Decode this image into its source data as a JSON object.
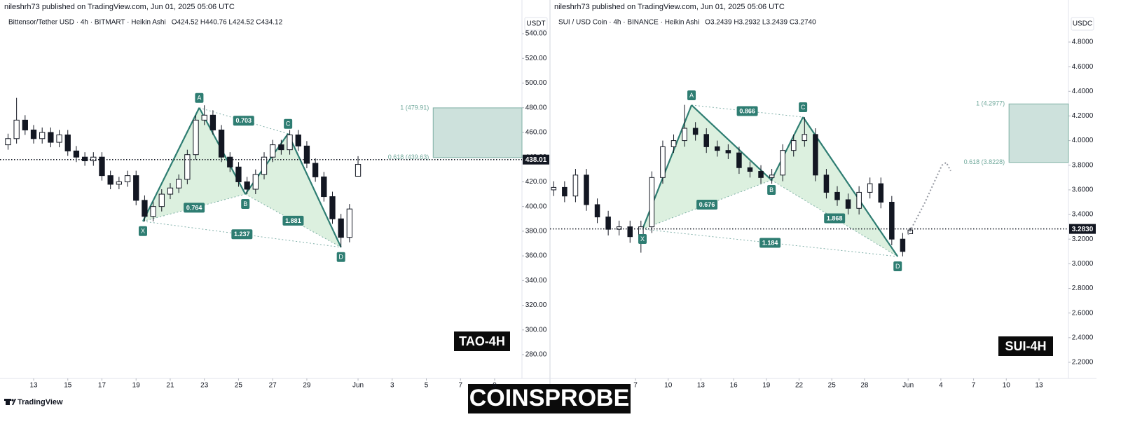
{
  "chart_data": [
    {
      "type": "candlestick",
      "header": "nileshrh73 published on TradingView.com, Jun 01, 2025 05:06 UTC",
      "symbol": "Bittensor/Tether USD · 4h · BITMART · Heikin Ashi",
      "ohlc": "O424.52 H440.76 L424.52 C434.12",
      "currency": "USDT",
      "tag": "TAO-4H",
      "up_color": "#ffffff",
      "down_color": "#131722",
      "x": [
        11.5,
        12,
        12.5,
        13,
        13.5,
        14,
        14.5,
        15,
        15.5,
        16,
        16.5,
        17,
        17.5,
        18,
        18.5,
        19,
        19.5,
        20,
        20.5,
        21,
        21.5,
        22,
        22.5,
        23,
        23.5,
        24,
        24.5,
        25,
        25.5,
        26,
        26.5,
        27,
        27.5,
        28,
        28.5,
        29,
        29.5,
        30,
        30.5,
        31,
        31.5,
        32
      ],
      "open": [
        450,
        455,
        470,
        462,
        455,
        460,
        452,
        458,
        445,
        440,
        437,
        440,
        425,
        418,
        420,
        425,
        405,
        392,
        400,
        410,
        415,
        422,
        442,
        470,
        474,
        462,
        440,
        432,
        420,
        414,
        426,
        440,
        450,
        446,
        458,
        449,
        435,
        424,
        408,
        390,
        375,
        424.52
      ],
      "high": [
        459,
        488,
        474,
        466,
        464,
        464,
        462,
        462,
        449,
        444,
        444,
        444,
        429,
        424,
        429,
        429,
        409,
        404,
        414,
        419,
        426,
        446,
        474,
        482,
        478,
        466,
        444,
        436,
        424,
        430,
        444,
        454,
        454,
        462,
        462,
        453,
        439,
        428,
        412,
        394,
        402,
        440.76
      ],
      "low": [
        446,
        451,
        458,
        451,
        451,
        448,
        448,
        441,
        436,
        433,
        433,
        421,
        414,
        414,
        416,
        401,
        388,
        388,
        396,
        406,
        411,
        418,
        438,
        466,
        458,
        436,
        428,
        416,
        410,
        410,
        422,
        436,
        442,
        442,
        445,
        431,
        420,
        404,
        386,
        367,
        371,
        424.52
      ],
      "close": [
        455,
        470,
        462,
        455,
        460,
        452,
        458,
        445,
        440,
        437,
        440,
        425,
        418,
        420,
        425,
        405,
        392,
        400,
        410,
        415,
        422,
        442,
        470,
        474,
        462,
        440,
        432,
        420,
        414,
        426,
        440,
        450,
        446,
        458,
        449,
        435,
        424,
        408,
        390,
        375,
        398,
        434.12
      ],
      "xlim": [
        11.03,
        41.6
      ],
      "xticks": [
        13,
        15,
        17,
        19,
        21,
        23,
        25,
        27,
        29,
        {
          "value": 32,
          "label": "Jun"
        },
        {
          "value": 34,
          "label": "3"
        },
        {
          "value": 36,
          "label": "5"
        },
        {
          "value": 38,
          "label": "7"
        },
        {
          "value": 40,
          "label": "9"
        }
      ],
      "ylim": [
        260.7,
        551.4
      ],
      "yticks": [
        {
          "value": 280,
          "label": "280.00"
        },
        {
          "value": 300,
          "label": "300.00"
        },
        {
          "value": 320,
          "label": "320.00"
        },
        {
          "value": 340,
          "label": "340.00"
        },
        {
          "value": 360,
          "label": "360.00"
        },
        {
          "value": 380,
          "label": "380.00"
        },
        {
          "value": 400,
          "label": "400.00"
        },
        {
          "value": 420,
          "label": "420.00"
        },
        {
          "value": 440,
          "label": "440.00"
        },
        {
          "value": 460,
          "label": "460.00"
        },
        {
          "value": 480,
          "label": "480.00"
        },
        {
          "value": 500,
          "label": "500.00"
        },
        {
          "value": 520,
          "label": "520.00"
        },
        {
          "value": 540,
          "label": "540.00"
        }
      ],
      "last_price": 438.01,
      "pattern": {
        "points": [
          {
            "label": "X",
            "x": 19.4,
            "y": 388
          },
          {
            "label": "A",
            "x": 22.7,
            "y": 480
          },
          {
            "label": "B",
            "x": 25.4,
            "y": 410
          },
          {
            "label": "C",
            "x": 27.9,
            "y": 459
          },
          {
            "label": "D",
            "x": 31.0,
            "y": 367
          }
        ],
        "ratios": {
          "XB": 0.764,
          "AC": 0.703,
          "BD": 1.881,
          "XD": 1.237
        }
      },
      "target": {
        "x_start": 36.4,
        "high": 479.91,
        "low": 439.63,
        "high_label": "1 (479.91)",
        "low_label": "0.618 (439.63)"
      }
    },
    {
      "type": "candlestick",
      "header": "nileshrh73 published on TradingView.com, Jun 01, 2025 05:06 UTC",
      "symbol": "SUI / USD Coin · 4h · BINANCE · Heikin Ashi",
      "ohlc": "O3.2439 H3.2932 L3.2439 C3.2740",
      "currency": "USDC",
      "tag": "SUI-4H",
      "up_color": "#ffffff",
      "down_color": "#131722",
      "x": [
        -0.5,
        0.5,
        1.5,
        2.5,
        3.5,
        4.5,
        5.5,
        6.5,
        7.5,
        8.5,
        9.5,
        10.5,
        11.5,
        12.5,
        13.5,
        14.5,
        15.5,
        16.5,
        17.5,
        18.5,
        19.5,
        20.5,
        21.5,
        22.5,
        23.5,
        24.5,
        25.5,
        26.5,
        27.5,
        28.5,
        29.5,
        30.5,
        31.5,
        32.2
      ],
      "open": [
        3.6,
        3.62,
        3.55,
        3.72,
        3.48,
        3.38,
        3.28,
        3.3,
        3.22,
        3.3,
        3.7,
        3.95,
        4.0,
        4.1,
        4.05,
        3.95,
        3.92,
        3.9,
        3.78,
        3.75,
        3.7,
        3.72,
        3.92,
        4.0,
        4.05,
        3.72,
        3.58,
        3.52,
        3.45,
        3.58,
        3.65,
        3.5,
        3.2,
        3.2439
      ],
      "high": [
        3.67,
        3.67,
        3.77,
        3.77,
        3.53,
        3.43,
        3.35,
        3.35,
        3.35,
        3.75,
        4.0,
        4.05,
        4.29,
        4.15,
        4.1,
        4.0,
        3.97,
        3.95,
        3.83,
        3.8,
        3.77,
        3.97,
        4.05,
        4.19,
        4.1,
        3.77,
        3.63,
        3.57,
        3.63,
        3.7,
        3.7,
        3.55,
        3.25,
        3.2932
      ],
      "low": [
        3.55,
        3.5,
        3.5,
        3.43,
        3.33,
        3.23,
        3.23,
        3.17,
        3.09,
        3.25,
        3.65,
        3.9,
        3.95,
        4.0,
        3.9,
        3.87,
        3.85,
        3.73,
        3.7,
        3.65,
        3.65,
        3.67,
        3.87,
        3.95,
        3.67,
        3.53,
        3.47,
        3.4,
        3.4,
        3.53,
        3.45,
        3.15,
        3.06,
        3.2439
      ],
      "close": [
        3.62,
        3.55,
        3.72,
        3.48,
        3.38,
        3.28,
        3.3,
        3.22,
        3.3,
        3.7,
        3.95,
        4.0,
        4.1,
        4.05,
        3.95,
        3.92,
        3.9,
        3.78,
        3.75,
        3.7,
        3.72,
        3.92,
        4.0,
        4.05,
        3.72,
        3.58,
        3.52,
        3.45,
        3.58,
        3.65,
        3.5,
        3.2,
        3.1,
        3.274
      ],
      "xlim": [
        -0.84,
        46.7
      ],
      "xticks": [
        7,
        10,
        13,
        16,
        19,
        22,
        25,
        28,
        {
          "value": 32,
          "label": "Jun"
        },
        {
          "value": 35,
          "label": "4"
        },
        {
          "value": 38,
          "label": "7"
        },
        {
          "value": 41,
          "label": "10"
        },
        {
          "value": 44,
          "label": "13"
        }
      ],
      "ylim": [
        2.069,
        4.982
      ],
      "yticks": [
        {
          "value": 2.2,
          "label": "2.2000"
        },
        {
          "value": 2.4,
          "label": "2.4000"
        },
        {
          "value": 2.6,
          "label": "2.6000"
        },
        {
          "value": 2.8,
          "label": "2.8000"
        },
        {
          "value": 3.0,
          "label": "3.0000"
        },
        {
          "value": 3.2,
          "label": "3.2000"
        },
        {
          "value": 3.4,
          "label": "3.4000"
        },
        {
          "value": 3.6,
          "label": "3.6000"
        },
        {
          "value": 3.8,
          "label": "3.8000"
        },
        {
          "value": 4.0,
          "label": "4.0000"
        },
        {
          "value": 4.2,
          "label": "4.2000"
        },
        {
          "value": 4.4,
          "label": "4.4000"
        },
        {
          "value": 4.6,
          "label": "4.6000"
        },
        {
          "value": 4.8,
          "label": "4.8000"
        }
      ],
      "last_price": {
        "value": 3.283,
        "label": "3.2830"
      },
      "pattern": {
        "points": [
          {
            "label": "X",
            "x": 7.64,
            "y": 3.281
          },
          {
            "label": "A",
            "x": 12.14,
            "y": 4.288
          },
          {
            "label": "B",
            "x": 19.47,
            "y": 3.679
          },
          {
            "label": "C",
            "x": 22.36,
            "y": 4.191
          },
          {
            "label": "D",
            "x": 31.04,
            "y": 3.059
          }
        ],
        "ratios": {
          "XB": 0.676,
          "AC": 0.866,
          "BD": 1.868,
          "XD": 1.184
        }
      },
      "projection": {
        "x": [
          32.0,
          33.5,
          35.1,
          35.5,
          35.9
        ],
        "y": [
          3.236,
          3.49,
          3.8,
          3.822,
          3.754
        ]
      },
      "target": {
        "x_start": 41.25,
        "high": 4.2977,
        "low": 3.8228,
        "high_label": "1 (4.2977)",
        "low_label": "0.618 (3.8228)"
      }
    }
  ],
  "footer": {
    "brand": "TradingView",
    "watermark": "COINSPROBE"
  }
}
